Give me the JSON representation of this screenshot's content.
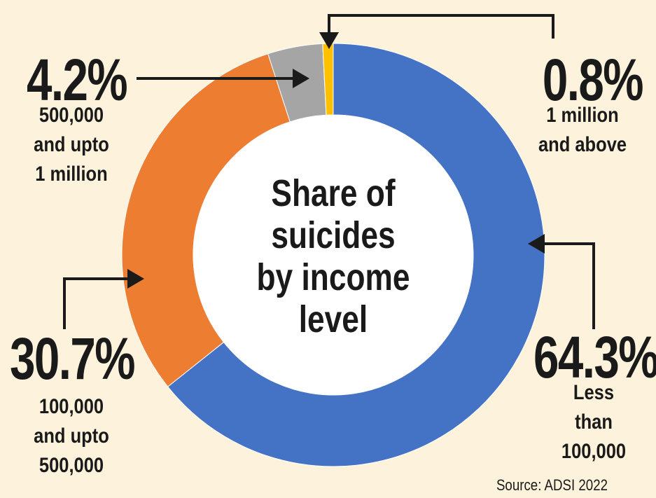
{
  "chart_data": {
    "type": "pie",
    "title": "Share of\nsuicides\nby income\nlevel",
    "categories": [
      "Less\nthan\n100,000",
      "100,000\nand upto\n500,000",
      "500,000\nand upto\n1 million",
      "1 million\nand above"
    ],
    "values": [
      64.3,
      30.7,
      4.2,
      0.8
    ],
    "value_labels": [
      "64.3%",
      "30.7%",
      "4.2%",
      "0.8%"
    ],
    "colors": [
      "#4472c4",
      "#ed7d31",
      "#a5a5a5",
      "#ffc000"
    ],
    "source": "Source: ADSI 2022"
  }
}
